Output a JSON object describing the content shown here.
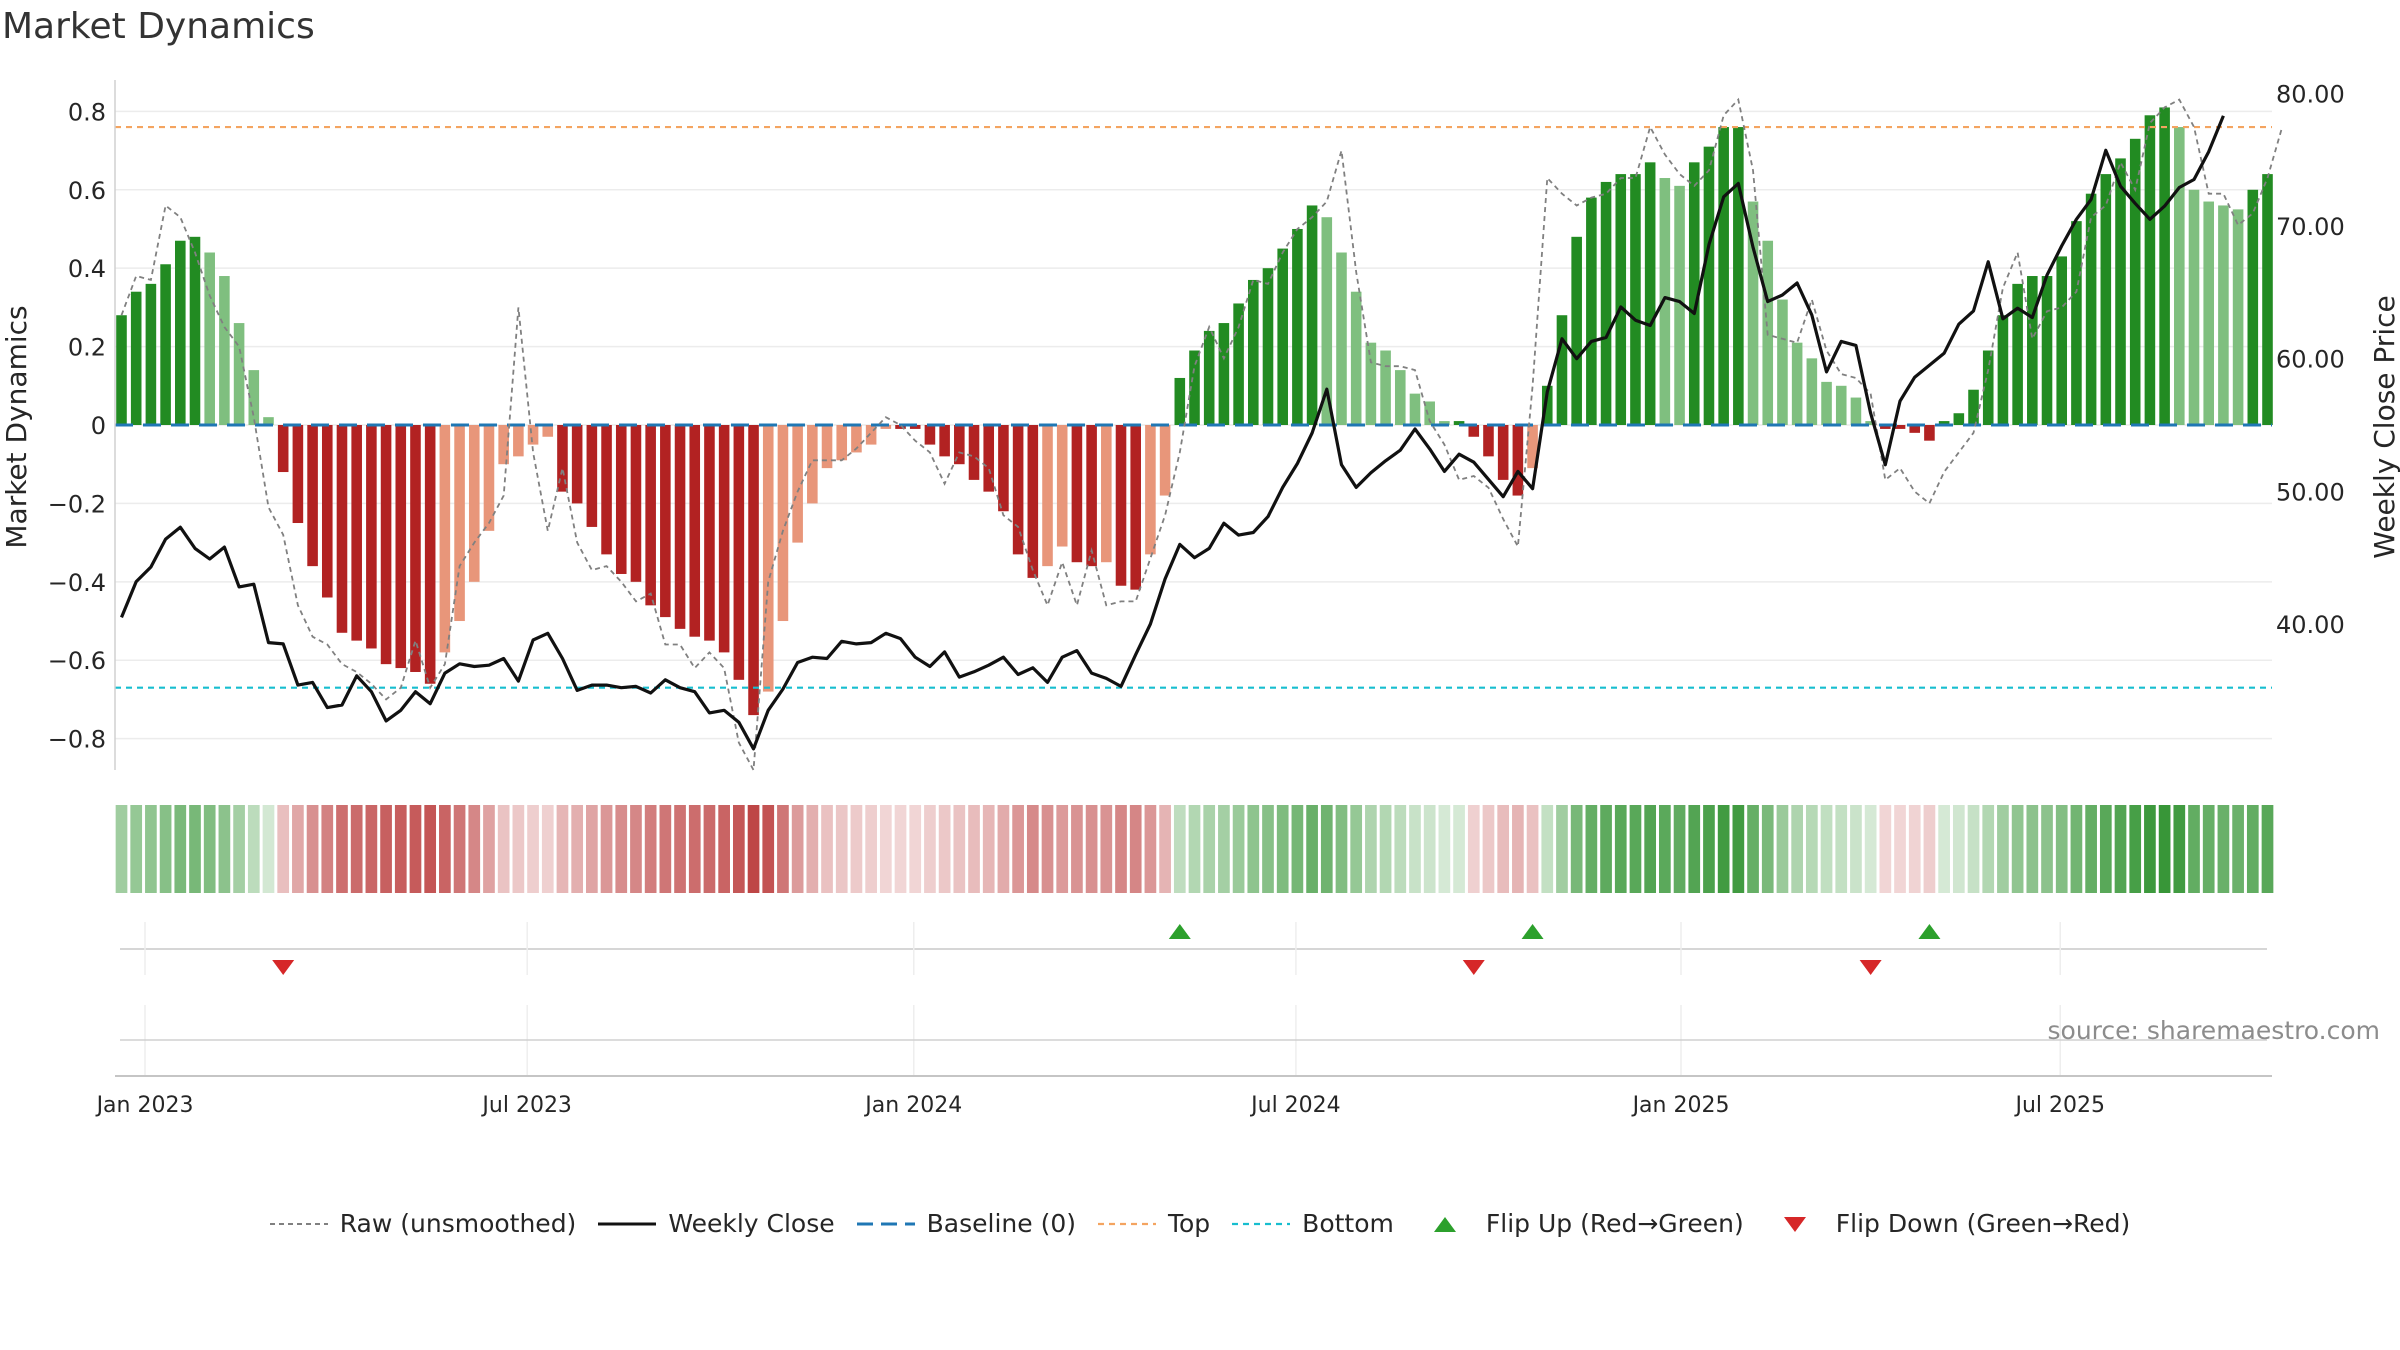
{
  "title": "Market Dynamics",
  "source": "source: sharemaestro.com",
  "colors": {
    "green": "#228b22",
    "green_light": "#7fbf7f",
    "red": "#b22222",
    "red_light": "#e8967a",
    "close": "#111111",
    "raw": "#808080",
    "baseline": "#1f77b4",
    "top": "#f4a460",
    "bottom": "#17becf",
    "flip_up": "#2ca02c",
    "flip_down": "#d62728"
  },
  "legend": [
    {
      "key": "raw",
      "label": "Raw (unsmoothed)"
    },
    {
      "key": "close",
      "label": "Weekly Close"
    },
    {
      "key": "baseline",
      "label": "Baseline (0)"
    },
    {
      "key": "top",
      "label": "Top"
    },
    {
      "key": "bottom",
      "label": "Bottom"
    },
    {
      "key": "flip_up",
      "label": "Flip Up (Red→Green)"
    },
    {
      "key": "flip_down",
      "label": "Flip Down (Green→Red)"
    }
  ],
  "chart_data": {
    "type": "bar",
    "title": "Market Dynamics",
    "ylabel": "Market Dynamics",
    "y2label": "Weekly Close Price",
    "ylim": [
      -0.88,
      0.88
    ],
    "y2lim": [
      29.0,
      81.0
    ],
    "yticks": [
      {
        "v": 0.8,
        "t": "0.8"
      },
      {
        "v": 0.6,
        "t": "0.6"
      },
      {
        "v": 0.4,
        "t": "0.4"
      },
      {
        "v": 0.2,
        "t": "0.2"
      },
      {
        "v": 0,
        "t": "0"
      },
      {
        "v": -0.2,
        "t": "−0.2"
      },
      {
        "v": -0.4,
        "t": "−0.4"
      },
      {
        "v": -0.6,
        "t": "−0.6"
      },
      {
        "v": -0.8,
        "t": "−0.8"
      }
    ],
    "y2ticks": [
      {
        "v": 80,
        "t": "80.00"
      },
      {
        "v": 70,
        "t": "70.00"
      },
      {
        "v": 60,
        "t": "60.00"
      },
      {
        "v": 50,
        "t": "50.00"
      },
      {
        "v": 40,
        "t": "40.00"
      }
    ],
    "xticks": [
      {
        "i": 1.6,
        "t": "Jan 2023"
      },
      {
        "i": 27.6,
        "t": "Jul 2023"
      },
      {
        "i": 53.9,
        "t": "Jan 2024"
      },
      {
        "i": 79.9,
        "t": "Jul 2024"
      },
      {
        "i": 106.1,
        "t": "Jan 2025"
      },
      {
        "i": 131.9,
        "t": "Jul 2025"
      }
    ],
    "top_level": 0.76,
    "bottom_level": -0.67,
    "baseline": 0,
    "dynamics": [
      0.28,
      0.34,
      0.36,
      0.41,
      0.47,
      0.48,
      0.44,
      0.38,
      0.26,
      0.14,
      0.02,
      -0.12,
      -0.25,
      -0.36,
      -0.44,
      -0.53,
      -0.55,
      -0.57,
      -0.61,
      -0.62,
      -0.63,
      -0.66,
      -0.58,
      -0.5,
      -0.4,
      -0.27,
      -0.1,
      -0.08,
      -0.05,
      -0.03,
      -0.17,
      -0.2,
      -0.26,
      -0.33,
      -0.38,
      -0.4,
      -0.46,
      -0.49,
      -0.52,
      -0.54,
      -0.55,
      -0.58,
      -0.65,
      -0.74,
      -0.68,
      -0.5,
      -0.3,
      -0.2,
      -0.11,
      -0.09,
      -0.07,
      -0.05,
      -0.01,
      -0.01,
      -0.01,
      -0.05,
      -0.08,
      -0.1,
      -0.14,
      -0.17,
      -0.22,
      -0.33,
      -0.39,
      -0.36,
      -0.31,
      -0.35,
      -0.36,
      -0.35,
      -0.41,
      -0.42,
      -0.33,
      -0.18,
      0.12,
      0.19,
      0.24,
      0.26,
      0.31,
      0.37,
      0.4,
      0.45,
      0.5,
      0.56,
      0.53,
      0.44,
      0.34,
      0.21,
      0.19,
      0.14,
      0.08,
      0.06,
      0.01,
      0.01,
      -0.03,
      -0.08,
      -0.14,
      -0.18,
      -0.11,
      0.1,
      0.28,
      0.48,
      0.58,
      0.62,
      0.64,
      0.64,
      0.67,
      0.63,
      0.61,
      0.67,
      0.71,
      0.76,
      0.76,
      0.57,
      0.47,
      0.32,
      0.21,
      0.17,
      0.11,
      0.1,
      0.07,
      0.01,
      -0.01,
      -0.01,
      -0.02,
      -0.04,
      0.01,
      0.03,
      0.09,
      0.19,
      0.28,
      0.36,
      0.38,
      0.38,
      0.43,
      0.52,
      0.59,
      0.64,
      0.68,
      0.73,
      0.79,
      0.81,
      0.76,
      0.6,
      0.57,
      0.56,
      0.55,
      0.6,
      0.64
    ],
    "raw": [
      0.28,
      0.38,
      0.37,
      0.56,
      0.53,
      0.44,
      0.33,
      0.25,
      0.2,
      0.02,
      -0.21,
      -0.28,
      -0.46,
      -0.54,
      -0.56,
      -0.61,
      -0.63,
      -0.66,
      -0.7,
      -0.67,
      -0.55,
      -0.67,
      -0.61,
      -0.36,
      -0.3,
      -0.25,
      -0.18,
      0.3,
      -0.07,
      -0.27,
      -0.11,
      -0.3,
      -0.37,
      -0.36,
      -0.4,
      -0.45,
      -0.43,
      -0.56,
      -0.56,
      -0.62,
      -0.58,
      -0.62,
      -0.81,
      -0.88,
      -0.4,
      -0.27,
      -0.17,
      -0.09,
      -0.09,
      -0.09,
      -0.06,
      -0.02,
      0.02,
      0.0,
      -0.04,
      -0.07,
      -0.15,
      -0.07,
      -0.08,
      -0.11,
      -0.23,
      -0.26,
      -0.37,
      -0.46,
      -0.35,
      -0.46,
      -0.32,
      -0.46,
      -0.45,
      -0.45,
      -0.34,
      -0.23,
      -0.07,
      0.15,
      0.25,
      0.17,
      0.25,
      0.37,
      0.36,
      0.44,
      0.5,
      0.53,
      0.57,
      0.7,
      0.39,
      0.16,
      0.15,
      0.15,
      0.14,
      0.01,
      -0.05,
      -0.14,
      -0.13,
      -0.16,
      -0.24,
      -0.31,
      0.1,
      0.63,
      0.59,
      0.56,
      0.58,
      0.59,
      0.63,
      0.63,
      0.76,
      0.69,
      0.64,
      0.61,
      0.65,
      0.79,
      0.83,
      0.65,
      0.23,
      0.22,
      0.21,
      0.32,
      0.19,
      0.13,
      0.12,
      0.08,
      -0.14,
      -0.11,
      -0.17,
      -0.2,
      -0.12,
      -0.07,
      -0.02,
      0.14,
      0.35,
      0.44,
      0.22,
      0.29,
      0.3,
      0.34,
      0.53,
      0.56,
      0.67,
      0.6,
      0.77,
      0.81,
      0.83,
      0.76,
      0.59,
      0.59,
      0.51,
      0.54,
      0.63,
      0.76
    ],
    "weekly_close": [
      40.5,
      43.2,
      44.3,
      46.4,
      47.3,
      45.7,
      44.9,
      45.8,
      42.8,
      43.0,
      38.6,
      38.5,
      35.4,
      35.6,
      33.7,
      33.9,
      36.1,
      34.9,
      32.7,
      33.5,
      34.9,
      34.0,
      36.3,
      37.0,
      36.8,
      36.9,
      37.4,
      35.7,
      38.8,
      39.3,
      37.4,
      35.0,
      35.4,
      35.4,
      35.2,
      35.3,
      34.8,
      35.8,
      35.2,
      34.9,
      33.3,
      33.5,
      32.6,
      30.6,
      33.5,
      35.1,
      37.1,
      37.5,
      37.4,
      38.7,
      38.5,
      38.6,
      39.3,
      38.9,
      37.5,
      36.8,
      37.9,
      36.0,
      36.4,
      36.9,
      37.5,
      36.2,
      36.7,
      35.6,
      37.5,
      38.0,
      36.3,
      35.9,
      35.3,
      37.7,
      40.0,
      43.4,
      46.0,
      45.0,
      45.7,
      47.6,
      46.7,
      46.9,
      48.1,
      50.3,
      52.1,
      54.4,
      57.7,
      52.0,
      50.3,
      51.4,
      52.3,
      53.1,
      54.7,
      53.2,
      51.5,
      52.8,
      52.2,
      50.9,
      49.6,
      51.5,
      50.2,
      57.5,
      61.5,
      60.0,
      61.3,
      61.6,
      63.9,
      62.9,
      62.5,
      64.6,
      64.3,
      63.4,
      68.6,
      72.2,
      73.2,
      68.4,
      64.3,
      64.8,
      65.7,
      63.3,
      59.0,
      61.3,
      61.0,
      55.9,
      52.0,
      56.8,
      58.6,
      59.5,
      60.4,
      62.6,
      63.6,
      67.3,
      63.0,
      63.8,
      63.1,
      66.3,
      68.5,
      70.5,
      72.0,
      75.7,
      73.0,
      71.7,
      70.5,
      71.5,
      72.9,
      73.5,
      75.6,
      78.3
    ],
    "flip_up": [
      72,
      96,
      123
    ],
    "flip_down": [
      11,
      92,
      119
    ]
  }
}
